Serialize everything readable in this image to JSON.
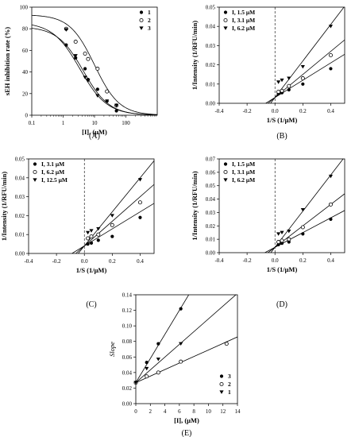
{
  "figure": {
    "background": "#ffffff",
    "ink": "#000000"
  },
  "chart_data": [
    {
      "id": "A",
      "type": "scatter",
      "panel_label": "(A)",
      "xlabel": "[I], (μM)",
      "ylabel": "sEH inhibition rate (%)",
      "x_scale": "log",
      "xlim": [
        0.1,
        1000
      ],
      "ylim": [
        0,
        100
      ],
      "x_ticks": [
        0.1,
        1,
        10,
        100
      ],
      "x_tick_labels": [
        "0.1",
        "1",
        "10",
        "100"
      ],
      "y_ticks": [
        0,
        20,
        40,
        60,
        80,
        100
      ],
      "y_tick_labels": [
        "0",
        "20",
        "40",
        "60",
        "80",
        "100"
      ],
      "legend_position": "top-right",
      "series": [
        {
          "name": "1",
          "marker": "filled-circle",
          "x": [
            1.25,
            2.5,
            5,
            6.25,
            12.5,
            25,
            50
          ],
          "y": [
            65,
            53,
            43,
            33,
            24,
            13,
            4
          ]
        },
        {
          "name": "2",
          "marker": "open-circle",
          "x": [
            1.25,
            2.5,
            5,
            6.25,
            12.5,
            25,
            50
          ],
          "y": [
            80,
            68,
            57,
            52,
            43,
            22,
            9
          ]
        },
        {
          "name": "3",
          "marker": "filled-triangle-down",
          "x": [
            1.25,
            2.5,
            5,
            6.25,
            12.5,
            25,
            50
          ],
          "y": [
            79,
            55,
            35,
            32,
            18,
            13,
            9
          ]
        }
      ],
      "curves": [
        {
          "series": "1",
          "top": 82,
          "ic50": 4.4,
          "hill": 1.05
        },
        {
          "series": "2",
          "top": 93,
          "ic50": 10,
          "hill": 1.1
        },
        {
          "series": "3",
          "top": 86,
          "ic50": 3.4,
          "hill": 1.0
        }
      ]
    },
    {
      "id": "B",
      "type": "scatter",
      "panel_label": "(B)",
      "xlabel": "1/S (1/μM)",
      "ylabel": "1/Intensity (1/RFU/min)",
      "xlim": [
        -0.4,
        0.5
      ],
      "ylim": [
        0,
        0.05
      ],
      "x_ticks": [
        -0.4,
        -0.2,
        0.0,
        0.2,
        0.4
      ],
      "x_tick_labels": [
        "-0.4",
        "-0.2",
        "0.0",
        "0.2",
        "0.4"
      ],
      "y_ticks": [
        0,
        0.01,
        0.02,
        0.03,
        0.04,
        0.05
      ],
      "y_tick_labels": [
        "0.00",
        "0.01",
        "0.02",
        "0.03",
        "0.04",
        "0.05"
      ],
      "legend_position": "top-left",
      "series": [
        {
          "name": "I, 1.5 μM",
          "marker": "filled-circle",
          "x": [
            0.025,
            0.05,
            0.1,
            0.2,
            0.4
          ],
          "y": [
            0.005,
            0.0055,
            0.007,
            0.01,
            0.018
          ],
          "line": {
            "slope": 0.045,
            "intercept": 0.003
          }
        },
        {
          "name": "I, 3.1 μM",
          "marker": "open-circle",
          "x": [
            0.025,
            0.05,
            0.1,
            0.2,
            0.4
          ],
          "y": [
            0.006,
            0.0065,
            0.009,
            0.013,
            0.025
          ],
          "line": {
            "slope": 0.06,
            "intercept": 0.003
          }
        },
        {
          "name": "I, 6.2 μM",
          "marker": "filled-triangle-down",
          "x": [
            0.025,
            0.05,
            0.1,
            0.2,
            0.4
          ],
          "y": [
            0.011,
            0.012,
            0.013,
            0.019,
            0.04
          ],
          "line": {
            "slope": 0.095,
            "intercept": 0.003
          }
        }
      ]
    },
    {
      "id": "C",
      "type": "scatter",
      "panel_label": "(C)",
      "xlabel": "1/S (1/μM)",
      "ylabel": "1/Intensity (1/RFU/min)",
      "xlim": [
        -0.4,
        0.5
      ],
      "ylim": [
        0,
        0.05
      ],
      "x_ticks": [
        -0.4,
        -0.2,
        0.0,
        0.2,
        0.4
      ],
      "x_tick_labels": [
        "-0.4",
        "-0.2",
        "0.0",
        "0.2",
        "0.4"
      ],
      "y_ticks": [
        0,
        0.01,
        0.02,
        0.03,
        0.04,
        0.05
      ],
      "y_tick_labels": [
        "0.00",
        "0.01",
        "0.02",
        "0.03",
        "0.04",
        "0.05"
      ],
      "legend_position": "top-left",
      "series": [
        {
          "name": "I, 3.1 μM",
          "marker": "filled-circle",
          "x": [
            0.025,
            0.05,
            0.1,
            0.2,
            0.4
          ],
          "y": [
            0.005,
            0.0055,
            0.007,
            0.009,
            0.019
          ],
          "line": {
            "slope": 0.045,
            "intercept": 0.004
          }
        },
        {
          "name": "I, 6.2 μM",
          "marker": "open-circle",
          "x": [
            0.025,
            0.05,
            0.1,
            0.2,
            0.4
          ],
          "y": [
            0.008,
            0.009,
            0.01,
            0.015,
            0.027
          ],
          "line": {
            "slope": 0.065,
            "intercept": 0.004
          }
        },
        {
          "name": "I, 12.5 μM",
          "marker": "filled-triangle-down",
          "x": [
            0.025,
            0.05,
            0.1,
            0.2,
            0.4
          ],
          "y": [
            0.011,
            0.012,
            0.013,
            0.02,
            0.039
          ],
          "line": {
            "slope": 0.09,
            "intercept": 0.004
          }
        }
      ]
    },
    {
      "id": "D",
      "type": "scatter",
      "panel_label": "(D)",
      "xlabel": "1/S (1/μM)",
      "ylabel": "1/Intensity (1/RFU/min)",
      "xlim": [
        -0.4,
        0.5
      ],
      "ylim": [
        0,
        0.07
      ],
      "x_ticks": [
        -0.4,
        -0.2,
        0.0,
        0.2,
        0.4
      ],
      "x_tick_labels": [
        "-0.4",
        "-0.2",
        "0.0",
        "0.2",
        "0.4"
      ],
      "y_ticks": [
        0,
        0.01,
        0.02,
        0.03,
        0.04,
        0.05,
        0.06,
        0.07
      ],
      "y_tick_labels": [
        "0.00",
        "0.01",
        "0.02",
        "0.03",
        "0.04",
        "0.05",
        "0.06",
        "0.07"
      ],
      "legend_position": "top-left",
      "series": [
        {
          "name": "I, 1.5 μM",
          "marker": "filled-circle",
          "x": [
            0.025,
            0.05,
            0.1,
            0.2,
            0.4
          ],
          "y": [
            0.006,
            0.007,
            0.008,
            0.014,
            0.025
          ],
          "line": {
            "slope": 0.055,
            "intercept": 0.004
          }
        },
        {
          "name": "I, 3.1 μM",
          "marker": "open-circle",
          "x": [
            0.025,
            0.05,
            0.1,
            0.2,
            0.4
          ],
          "y": [
            0.008,
            0.009,
            0.01,
            0.019,
            0.036
          ],
          "line": {
            "slope": 0.08,
            "intercept": 0.004
          }
        },
        {
          "name": "I, 6.2 μM",
          "marker": "filled-triangle-down",
          "x": [
            0.025,
            0.05,
            0.1,
            0.2,
            0.4
          ],
          "y": [
            0.014,
            0.015,
            0.016,
            0.032,
            0.057
          ],
          "line": {
            "slope": 0.135,
            "intercept": 0.004
          }
        }
      ]
    },
    {
      "id": "E",
      "type": "scatter",
      "panel_label": "(E)",
      "xlabel": "[I], (μM)",
      "ylabel": "Slope",
      "xlim": [
        0,
        14
      ],
      "ylim": [
        0,
        0.14
      ],
      "x_ticks": [
        0,
        2,
        4,
        6,
        8,
        10,
        12,
        14
      ],
      "x_tick_labels": [
        "0",
        "2",
        "4",
        "6",
        "8",
        "10",
        "12",
        "14"
      ],
      "y_ticks": [
        0,
        0.02,
        0.04,
        0.06,
        0.08,
        0.1,
        0.12,
        0.14
      ],
      "y_tick_labels": [
        "0.00",
        "0.02",
        "0.04",
        "0.06",
        "0.08",
        "0.10",
        "0.12",
        "0.14"
      ],
      "legend_position": "bottom-right",
      "series": [
        {
          "name": "3",
          "marker": "filled-circle",
          "x": [
            0,
            1.5,
            3.1,
            6.2
          ],
          "y": [
            0.027,
            0.053,
            0.077,
            0.122
          ],
          "line": {
            "slope": 0.0155,
            "intercept": 0.027
          }
        },
        {
          "name": "2",
          "marker": "open-circle",
          "x": [
            0,
            1.5,
            3.1,
            6.2,
            12.5
          ],
          "y": [
            0.027,
            0.035,
            0.04,
            0.054,
            0.077
          ],
          "line": {
            "slope": 0.0042,
            "intercept": 0.027
          }
        },
        {
          "name": "1",
          "marker": "filled-triangle-down",
          "x": [
            0,
            1.5,
            3.1,
            6.2
          ],
          "y": [
            0.027,
            0.045,
            0.057,
            0.077
          ],
          "line": {
            "slope": 0.0082,
            "intercept": 0.027
          }
        }
      ]
    }
  ]
}
